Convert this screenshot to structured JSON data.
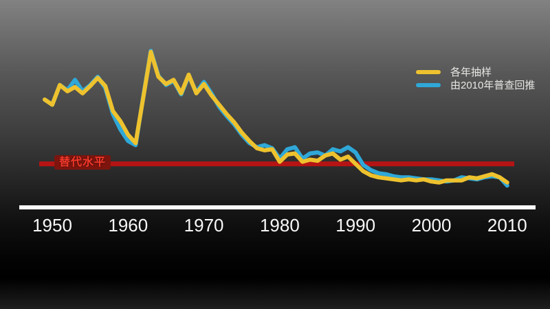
{
  "chart_data": {
    "type": "line",
    "title": "",
    "xlabel": "",
    "ylabel": "",
    "grid": false,
    "legend_position": "top-right",
    "xlim": [
      1949,
      2011
    ],
    "ylim": [
      0,
      7.9
    ],
    "x_ticks": [
      1950,
      1960,
      1970,
      1980,
      1990,
      2000,
      2010
    ],
    "years": [
      1949,
      1950,
      1951,
      1952,
      1953,
      1954,
      1955,
      1956,
      1957,
      1958,
      1959,
      1960,
      1961,
      1962,
      1963,
      1964,
      1965,
      1966,
      1967,
      1968,
      1969,
      1970,
      1971,
      1972,
      1973,
      1974,
      1975,
      1976,
      1977,
      1978,
      1979,
      1980,
      1981,
      1982,
      1983,
      1984,
      1985,
      1986,
      1987,
      1988,
      1989,
      1990,
      1991,
      1992,
      1993,
      1994,
      1995,
      1996,
      1997,
      1998,
      1999,
      2000,
      2001,
      2002,
      2003,
      2004,
      2005,
      2006,
      2007,
      2008,
      2009,
      2010
    ],
    "series": [
      {
        "name": "各年抽样",
        "color": "#eec22e",
        "values": [
          5.2,
          4.95,
          5.9,
          5.6,
          5.8,
          5.5,
          5.85,
          6.25,
          5.85,
          4.65,
          4.15,
          3.5,
          3.1,
          5.3,
          7.5,
          6.3,
          5.95,
          6.15,
          5.5,
          6.4,
          5.5,
          5.95,
          5.4,
          4.95,
          4.5,
          4.1,
          3.6,
          3.2,
          2.85,
          2.75,
          2.8,
          2.2,
          2.55,
          2.6,
          2.2,
          2.3,
          2.25,
          2.5,
          2.6,
          2.3,
          2.45,
          2.1,
          1.75,
          1.55,
          1.45,
          1.4,
          1.35,
          1.3,
          1.35,
          1.3,
          1.35,
          1.25,
          1.2,
          1.3,
          1.3,
          1.3,
          1.45,
          1.4,
          1.5,
          1.6,
          1.45,
          1.2
        ]
      },
      {
        "name": "由2010年普查回推",
        "color": "#2fa8d8",
        "values": [
          5.2,
          4.95,
          5.9,
          5.65,
          6.15,
          5.6,
          5.9,
          6.3,
          5.75,
          4.5,
          3.75,
          3.2,
          3.0,
          5.35,
          7.55,
          6.35,
          5.9,
          6.1,
          5.45,
          6.35,
          5.55,
          6.05,
          5.5,
          4.85,
          4.4,
          4.0,
          3.5,
          3.1,
          2.9,
          3.0,
          2.85,
          2.35,
          2.8,
          2.9,
          2.35,
          2.6,
          2.65,
          2.5,
          2.8,
          2.7,
          2.9,
          2.65,
          2.05,
          1.8,
          1.65,
          1.6,
          1.5,
          1.45,
          1.45,
          1.4,
          1.35,
          1.35,
          1.3,
          1.25,
          1.3,
          1.45,
          1.4,
          1.35,
          1.45,
          1.5,
          1.45,
          1.05
        ]
      }
    ],
    "reference_line": {
      "label": "替代水平",
      "value": 2.1,
      "color": "#b51414",
      "label_color": "#f5392b",
      "label_bg": "#7d150e"
    },
    "axis_color": "#fbfbfb"
  }
}
